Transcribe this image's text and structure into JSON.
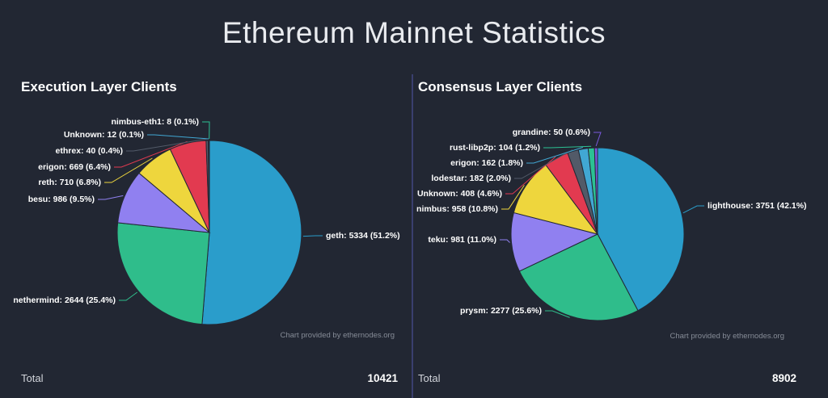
{
  "page": {
    "title": "Ethereum Mainnet Statistics",
    "background": "#222733",
    "divider_color": "#3a3f6e"
  },
  "panels": [
    {
      "title": "Execution Layer Clients",
      "credit": "Chart provided by ethernodes.org",
      "total_label": "Total",
      "total_value": "10421"
    },
    {
      "title": "Consensus Layer Clients",
      "credit": "Chart provided by ethernodes.org",
      "total_label": "Total",
      "total_value": "8902"
    }
  ],
  "chart_data": [
    {
      "type": "pie",
      "title": "Execution Layer Clients",
      "total_displayed": 10421,
      "label_format": "{name}: {value} ({pct}%)",
      "legend_position": "none",
      "slices": [
        {
          "name": "geth",
          "value": 5334,
          "pct": "51.2",
          "color": "#2a9dcb"
        },
        {
          "name": "nethermind",
          "value": 2644,
          "pct": "25.4",
          "color": "#2fbd8b"
        },
        {
          "name": "besu",
          "value": 986,
          "pct": "9.5",
          "color": "#9080f0"
        },
        {
          "name": "reth",
          "value": 710,
          "pct": "6.8",
          "color": "#eed63d"
        },
        {
          "name": "erigon",
          "value": 669,
          "pct": "6.4",
          "color": "#e23a50"
        },
        {
          "name": "ethrex",
          "value": 40,
          "pct": "0.4",
          "color": "#525a68"
        },
        {
          "name": "Unknown",
          "value": 12,
          "pct": "0.1",
          "color": "#41a7d3"
        },
        {
          "name": "nimbus-eth1",
          "value": 8,
          "pct": "0.1",
          "color": "#2cc193"
        }
      ]
    },
    {
      "type": "pie",
      "title": "Consensus Layer Clients",
      "total_displayed": 8902,
      "label_format": "{name}: {value} ({pct}%)",
      "legend_position": "none",
      "slices": [
        {
          "name": "lighthouse",
          "value": 3751,
          "pct": "42.1",
          "color": "#2a9dcb"
        },
        {
          "name": "prysm",
          "value": 2277,
          "pct": "25.6",
          "color": "#2fbd8b"
        },
        {
          "name": "teku",
          "value": 981,
          "pct": "11.0",
          "color": "#9080f0"
        },
        {
          "name": "nimbus",
          "value": 958,
          "pct": "10.8",
          "color": "#eed63d"
        },
        {
          "name": "Unknown",
          "value": 408,
          "pct": "4.6",
          "color": "#e23a50"
        },
        {
          "name": "lodestar",
          "value": 182,
          "pct": "2.0",
          "color": "#525a68"
        },
        {
          "name": "erigon",
          "value": 162,
          "pct": "1.8",
          "color": "#41a7d3"
        },
        {
          "name": "rust-libp2p",
          "value": 104,
          "pct": "1.2",
          "color": "#2cc193"
        },
        {
          "name": "grandine",
          "value": 50,
          "pct": "0.6",
          "color": "#7a58dd"
        }
      ]
    }
  ]
}
